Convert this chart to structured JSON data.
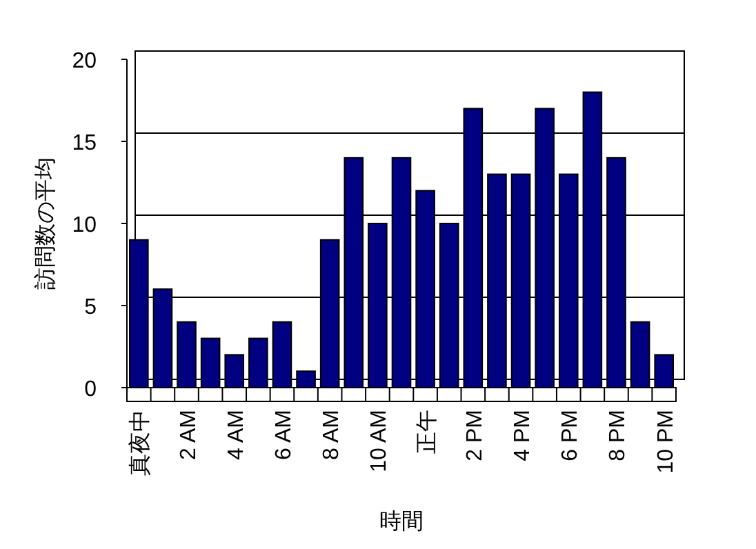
{
  "chart_data": {
    "type": "bar",
    "xlabel": "時間",
    "ylabel": "訪問数の平均",
    "categories": [
      "真夜中",
      null,
      "2 AM",
      null,
      "4 AM",
      null,
      "6 AM",
      null,
      "8 AM",
      null,
      "10 AM",
      null,
      "正午",
      null,
      "2 PM",
      null,
      "4 PM",
      null,
      "6 PM",
      null,
      "8 PM",
      null,
      "10 PM"
    ],
    "values": [
      9,
      6,
      4,
      3,
      2,
      3,
      4,
      1,
      9,
      14,
      10,
      14,
      12,
      10,
      17,
      13,
      13,
      17,
      13,
      18,
      14,
      4,
      2
    ],
    "color": "#000080",
    "ylim": [
      0,
      20
    ],
    "yticks": [
      0,
      5,
      10,
      15,
      20
    ],
    "grid": "y"
  }
}
